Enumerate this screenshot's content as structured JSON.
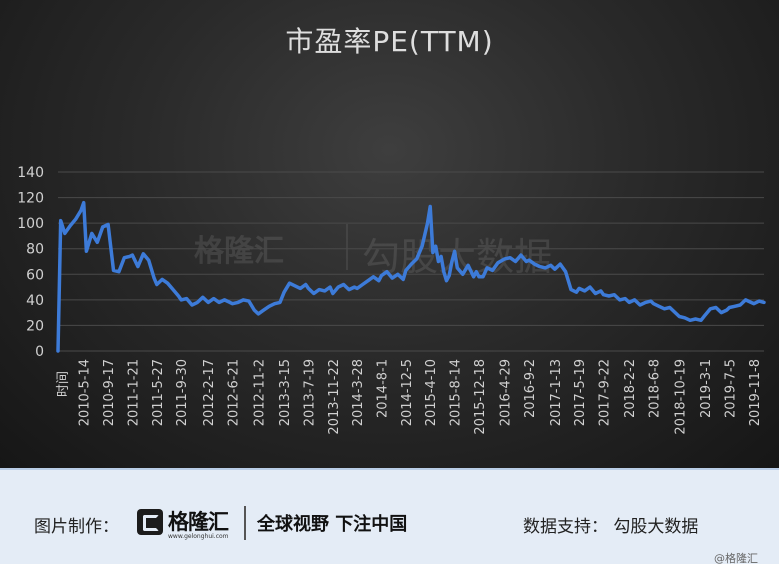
{
  "chart_data": {
    "type": "line",
    "title": "市盈率PE(TTM)",
    "xlabel": "时间",
    "ylabel": "",
    "ylim": [
      0,
      140
    ],
    "yticks": [
      0,
      20,
      40,
      60,
      80,
      100,
      120,
      140
    ],
    "xtick_labels": [
      "2010-5-14",
      "2010-9-17",
      "2011-1-21",
      "2011-5-27",
      "2011-9-30",
      "2012-2-17",
      "2012-6-21",
      "2012-11-2",
      "2013-3-15",
      "2013-7-19",
      "2013-11-22",
      "2014-3-28",
      "2014-8-1",
      "2014-12-5",
      "2015-4-10",
      "2015-8-14",
      "2015-12-18",
      "2016-4-29",
      "2016-9-2",
      "2017-1-13",
      "2017-5-19",
      "2017-9-22",
      "2018-2-2",
      "2018-6-8",
      "2018-10-19",
      "2019-3-1",
      "2019-7-5",
      "2019-11-8"
    ],
    "grid": true,
    "legend": "none",
    "series_color": "#3d7bd8",
    "series": [
      {
        "x": [
          "2010-1-1",
          "2010-1-15",
          "2010-2-5",
          "2010-3-5",
          "2010-4-2",
          "2010-4-30",
          "2010-5-14",
          "2010-5-28",
          "2010-6-25",
          "2010-7-23",
          "2010-8-20",
          "2010-9-17",
          "2010-10-15",
          "2010-11-12",
          "2010-12-10",
          "2011-1-7",
          "2011-1-21",
          "2011-2-18",
          "2011-3-18",
          "2011-4-15",
          "2011-5-13",
          "2011-5-27",
          "2011-6-24",
          "2011-7-22",
          "2011-8-19",
          "2011-9-16",
          "2011-9-30",
          "2011-10-28",
          "2011-11-25",
          "2011-12-23",
          "2012-1-20",
          "2012-2-17",
          "2012-3-16",
          "2012-4-13",
          "2012-5-11",
          "2012-6-8",
          "2012-6-21",
          "2012-7-20",
          "2012-8-17",
          "2012-9-14",
          "2012-10-12",
          "2012-11-2",
          "2012-11-30",
          "2012-12-28",
          "2013-1-25",
          "2013-2-22",
          "2013-3-15",
          "2013-4-12",
          "2013-5-10",
          "2013-6-7",
          "2013-7-5",
          "2013-7-19",
          "2013-8-16",
          "2013-9-13",
          "2013-10-11",
          "2013-11-8",
          "2013-11-22",
          "2013-12-20",
          "2014-1-17",
          "2014-2-14",
          "2014-3-14",
          "2014-3-28",
          "2014-4-25",
          "2014-5-23",
          "2014-6-20",
          "2014-7-18",
          "2014-8-1",
          "2014-8-29",
          "2014-9-26",
          "2014-10-24",
          "2014-11-21",
          "2014-12-5",
          "2015-1-2",
          "2015-1-30",
          "2015-2-27",
          "2015-3-27",
          "2015-4-10",
          "2015-4-24",
          "2015-5-8",
          "2015-5-22",
          "2015-6-5",
          "2015-6-19",
          "2015-7-3",
          "2015-7-17",
          "2015-7-31",
          "2015-8-14",
          "2015-8-28",
          "2015-9-25",
          "2015-10-23",
          "2015-11-20",
          "2015-12-4",
          "2015-12-18",
          "2016-1-8",
          "2016-1-29",
          "2016-2-26",
          "2016-3-25",
          "2016-4-29",
          "2016-5-27",
          "2016-6-24",
          "2016-7-22",
          "2016-8-19",
          "2016-9-2",
          "2016-9-30",
          "2016-10-28",
          "2016-11-25",
          "2016-12-23",
          "2017-1-13",
          "2017-2-10",
          "2017-3-10",
          "2017-4-7",
          "2017-5-5",
          "2017-5-19",
          "2017-6-16",
          "2017-7-14",
          "2017-8-11",
          "2017-9-8",
          "2017-9-22",
          "2017-10-20",
          "2017-11-17",
          "2017-12-15",
          "2018-1-12",
          "2018-2-2",
          "2018-3-2",
          "2018-3-30",
          "2018-4-27",
          "2018-5-25",
          "2018-6-8",
          "2018-7-6",
          "2018-8-3",
          "2018-8-31",
          "2018-9-28",
          "2018-10-19",
          "2018-11-16",
          "2018-12-14",
          "2019-1-11",
          "2019-2-8",
          "2019-3-1",
          "2019-3-29",
          "2019-4-26",
          "2019-5-24",
          "2019-6-21",
          "2019-7-5",
          "2019-8-2",
          "2019-8-30",
          "2019-9-27",
          "2019-10-25",
          "2019-11-8",
          "2019-12-6",
          "2019-12-31"
        ],
        "y": [
          0,
          102,
          92,
          98,
          103,
          110,
          116,
          78,
          92,
          85,
          97,
          99,
          63,
          62,
          73,
          74,
          75,
          66,
          76,
          71,
          57,
          52,
          56,
          53,
          48,
          43,
          40,
          41,
          36,
          38,
          42,
          38,
          41,
          38,
          40,
          38,
          37,
          38,
          40,
          39,
          32,
          29,
          32,
          35,
          37,
          38,
          46,
          53,
          51,
          49,
          52,
          49,
          45,
          48,
          47,
          50,
          45,
          50,
          52,
          48,
          50,
          49,
          52,
          55,
          58,
          55,
          59,
          62,
          57,
          60,
          56,
          63,
          68,
          72,
          82,
          100,
          113,
          77,
          82,
          70,
          74,
          62,
          55,
          59,
          70,
          78,
          65,
          60,
          67,
          58,
          62,
          58,
          58,
          65,
          63,
          69,
          72,
          73,
          70,
          75,
          70,
          71,
          68,
          66,
          65,
          67,
          64,
          68,
          62,
          48,
          46,
          49,
          47,
          50,
          45,
          47,
          44,
          43,
          44,
          40,
          41,
          38,
          40,
          36,
          38,
          39,
          37,
          35,
          33,
          34,
          30,
          27,
          26,
          24,
          25,
          24,
          28,
          33,
          34,
          30,
          32,
          34,
          35,
          36,
          40,
          38,
          37,
          39,
          38
        ]
      }
    ]
  },
  "watermark": {
    "logo": "格隆汇",
    "text": "勾股大数据"
  },
  "footer": {
    "made_by_label": "图片制作：",
    "brand_name": "格隆汇",
    "brand_url": "www.gelonghui.com",
    "slogan": "全球视野 下注中国",
    "support": "数据支持：   勾股大数据",
    "corner_mark": "@格隆汇"
  }
}
